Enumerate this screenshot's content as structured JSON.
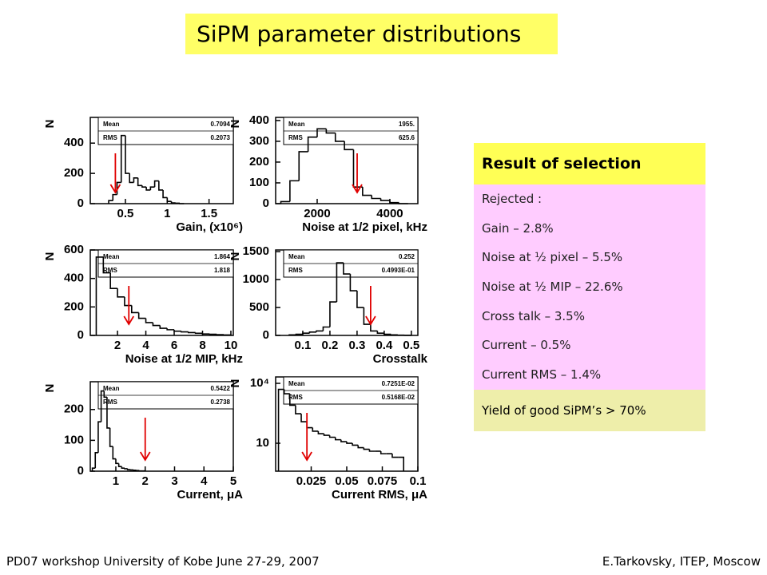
{
  "title": "SiPM parameter distributions",
  "selection": {
    "heading": "Result of selection",
    "rows": [
      "Rejected :",
      "Gain – 2.8%",
      "Noise at ½ pixel – 5.5%",
      "Noise at ½ MIP – 22.6%",
      "Cross talk – 3.5%",
      "Current – 0.5%",
      "Current RMS – 1.4%"
    ],
    "yield": "Yield of good SiPM’s > 70%"
  },
  "footer": {
    "left": "PD07 workshop   University of Kobe   June 27-29, 2007",
    "right": "E.Tarkovsky, ITEP, Moscow"
  },
  "chart_data": [
    {
      "type": "histogram",
      "xlabel": "Gain, (x10⁶)",
      "ylabel": "N",
      "bins": [
        0.3,
        0.35,
        0.4,
        0.45,
        0.5,
        0.55,
        0.6,
        0.65,
        0.7,
        0.75,
        0.8,
        0.85,
        0.9,
        0.95,
        1.0,
        1.05,
        1.1,
        1.15,
        1.2
      ],
      "values": [
        20,
        60,
        140,
        450,
        200,
        140,
        170,
        120,
        110,
        90,
        110,
        150,
        90,
        40,
        15,
        5,
        3,
        0
      ],
      "xlim": [
        0.08,
        1.79
      ],
      "ylim": [
        0,
        570
      ],
      "xticks": [
        0.5,
        1,
        1.5
      ],
      "yticks": [
        0,
        200,
        400
      ],
      "stats": [
        {
          "name": "Mean",
          "value": 0.7094
        },
        {
          "name": "RMS",
          "value": 0.2073
        }
      ],
      "arrows": [
        0.38
      ]
    },
    {
      "type": "histogram",
      "xlabel": "Noise at 1/2 pixel, kHz",
      "ylabel": "N",
      "bins": [
        1000,
        1250,
        1500,
        1750,
        2000,
        2250,
        2500,
        2750,
        3000,
        3250,
        3500,
        3750,
        4000,
        4250,
        4500
      ],
      "values": [
        10,
        110,
        250,
        320,
        360,
        340,
        300,
        260,
        80,
        40,
        25,
        15,
        5,
        0
      ],
      "xlim": [
        857,
        4770
      ],
      "ylim": [
        0,
        415
      ],
      "xticks": [
        2000,
        4000
      ],
      "yticks": [
        0,
        100,
        200,
        300,
        400
      ],
      "stats": [
        {
          "name": "Mean",
          "value": {
            "value": 1955,
            "label": "1955."
          }
        },
        {
          "name": "RMS",
          "value": 625.6
        }
      ],
      "arrows": [
        3100
      ]
    },
    {
      "type": "histogram",
      "xlabel": "Noise at 1/2 MIP, kHz",
      "ylabel": "N",
      "bins": [
        0.5,
        1,
        1.5,
        2,
        2.5,
        3,
        3.5,
        4,
        4.5,
        5,
        5.5,
        6,
        6.5,
        7,
        7.5,
        8,
        8.5,
        9,
        9.5,
        10
      ],
      "values": [
        550,
        440,
        330,
        270,
        210,
        160,
        120,
        90,
        70,
        50,
        40,
        30,
        25,
        20,
        15,
        10,
        8,
        5,
        3
      ],
      "xlim": [
        0.08,
        10.17
      ],
      "ylim": [
        0,
        600
      ],
      "xticks": [
        2,
        4,
        6,
        8,
        10
      ],
      "yticks": [
        0,
        200,
        400,
        600
      ],
      "stats": [
        {
          "name": "Mean",
          "value": 1.864
        },
        {
          "name": "RMS",
          "value": 1.818
        }
      ],
      "arrows": [
        2.8
      ]
    },
    {
      "type": "histogram",
      "xlabel": "Crosstalk",
      "ylabel": "N",
      "bins": [
        0.05,
        0.075,
        0.1,
        0.125,
        0.15,
        0.175,
        0.2,
        0.225,
        0.25,
        0.275,
        0.3,
        0.325,
        0.35,
        0.375,
        0.4,
        0.425,
        0.45,
        0.475,
        0.5
      ],
      "values": [
        10,
        20,
        40,
        60,
        80,
        150,
        600,
        1300,
        1100,
        800,
        500,
        200,
        80,
        40,
        20,
        10,
        5,
        3
      ],
      "xlim": [
        0,
        0.524
      ],
      "ylim": [
        0,
        1530
      ],
      "xticks": [
        0.1,
        0.2,
        0.3,
        0.4,
        0.5
      ],
      "yticks": [
        0,
        500,
        1000,
        1500
      ],
      "stats": [
        {
          "name": "Mean",
          "value": 0.252
        },
        {
          "name": "RMS",
          "value": {
            "value": 0.04993,
            "label": "0.4993E-01"
          }
        }
      ],
      "arrows": [
        0.35
      ]
    },
    {
      "type": "histogram",
      "xlabel": "Current, μA",
      "ylabel": "N",
      "bins": [
        0.2,
        0.3,
        0.4,
        0.5,
        0.6,
        0.7,
        0.8,
        0.9,
        1.0,
        1.1,
        1.2,
        1.3,
        1.4,
        1.5,
        1.6,
        1.7,
        1.8,
        1.9,
        2.0
      ],
      "values": [
        10,
        60,
        160,
        260,
        240,
        140,
        80,
        40,
        25,
        15,
        10,
        8,
        5,
        4,
        3,
        2,
        1,
        1
      ],
      "xlim": [
        0.13,
        5
      ],
      "ylim": [
        0,
        290
      ],
      "xticks": [
        1,
        2,
        3,
        4,
        5
      ],
      "yticks": [
        0,
        100,
        200
      ],
      "stats": [
        {
          "name": "Mean",
          "value": 0.5422
        },
        {
          "name": "RMS",
          "value": 0.2738
        }
      ],
      "arrows": [
        2.0
      ]
    },
    {
      "type": "histogram",
      "xlabel": "Current RMS, μA",
      "ylabel": "N",
      "log_y": true,
      "bins": [
        0.002,
        0.006,
        0.01,
        0.014,
        0.018,
        0.022,
        0.026,
        0.03,
        0.034,
        0.038,
        0.042,
        0.046,
        0.05,
        0.054,
        0.058,
        0.062,
        0.066,
        0.07,
        0.074,
        0.078,
        0.082,
        0.086,
        0.09
      ],
      "values": [
        5000,
        3000,
        800,
        300,
        120,
        60,
        40,
        30,
        25,
        20,
        15,
        12,
        10,
        8,
        6,
        5,
        4,
        4,
        3,
        3,
        2,
        2
      ],
      "xlim": [
        0,
        0.1
      ],
      "ylim": [
        0.4,
        20900
      ],
      "xticks": [
        0.025,
        0.05,
        0.075,
        0.1
      ],
      "yticks": [
        {
          "value": 10,
          "label": "10"
        },
        {
          "value": 10000,
          "label": "10⁴"
        }
      ],
      "stats": [
        {
          "name": "Mean",
          "value": {
            "value": 0.007251,
            "label": "0.7251E-02"
          }
        },
        {
          "name": "RMS",
          "value": {
            "value": 0.005168,
            "label": "0.5168E-02"
          }
        }
      ],
      "arrows": [
        0.022
      ]
    }
  ]
}
